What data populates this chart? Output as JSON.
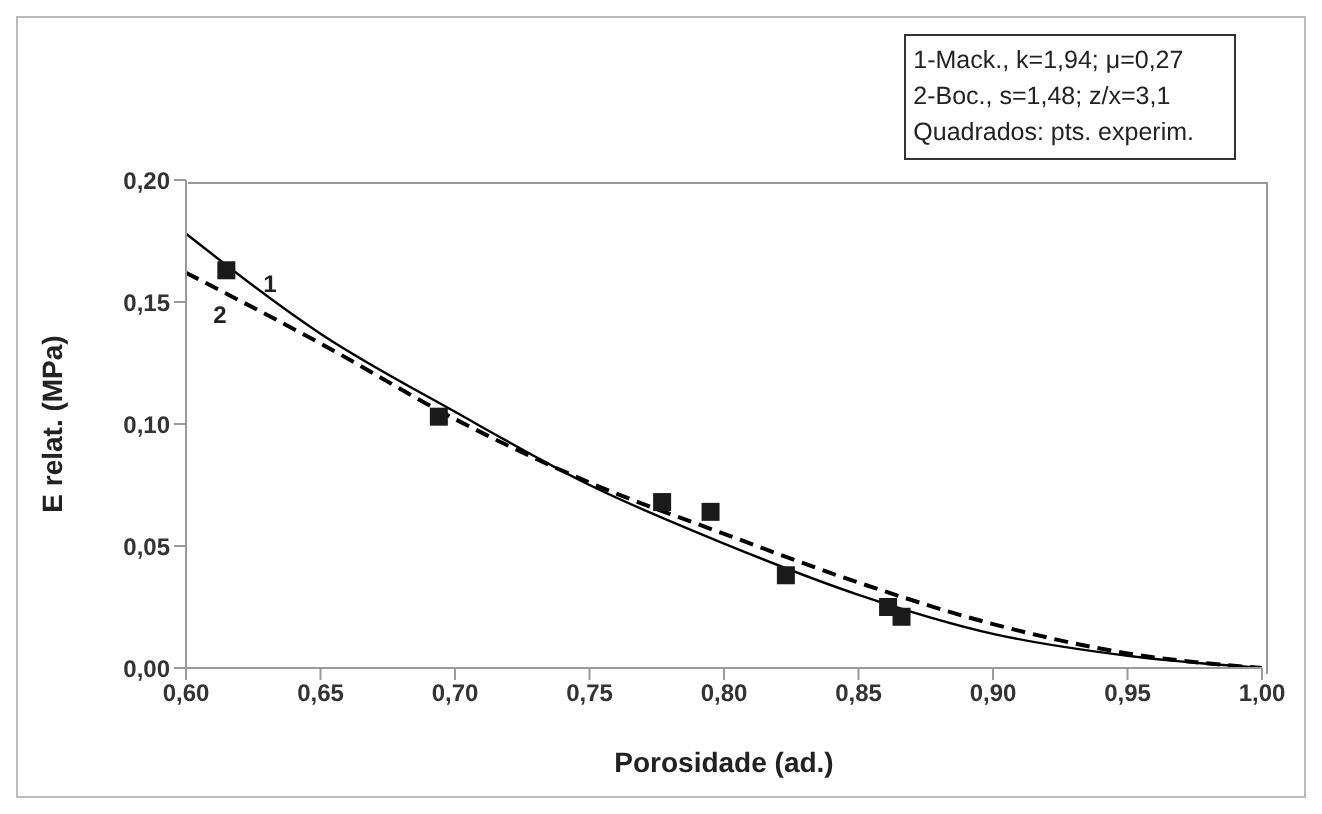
{
  "chart_data": {
    "type": "line",
    "xlabel": "Porosidade (ad.)",
    "ylabel": "E relat. (MPa)",
    "xlim": [
      0.6,
      1.0
    ],
    "ylim": [
      0,
      0.2
    ],
    "xticks": [
      {
        "value": 0.6,
        "label": "0,60"
      },
      {
        "value": 0.65,
        "label": "0,65"
      },
      {
        "value": 0.7,
        "label": "0,70"
      },
      {
        "value": 0.75,
        "label": "0,75"
      },
      {
        "value": 0.8,
        "label": "0,80"
      },
      {
        "value": 0.85,
        "label": "0,85"
      },
      {
        "value": 0.9,
        "label": "0,90"
      },
      {
        "value": 0.95,
        "label": "0,95"
      },
      {
        "value": 1.0,
        "label": "1,00"
      }
    ],
    "yticks": [
      {
        "value": 0,
        "label": "0,00"
      },
      {
        "value": 0.05,
        "label": "0,05"
      },
      {
        "value": 0.1,
        "label": "0,10"
      },
      {
        "value": 0.15,
        "label": "0,15"
      },
      {
        "value": 0.2,
        "label": "0,20"
      }
    ],
    "grid": false,
    "series": [
      {
        "name": "1",
        "color": "#000000",
        "line_style": "solid",
        "marker": "none",
        "x": [
          0.6,
          0.65,
          0.7,
          0.75,
          0.8,
          0.85,
          0.9,
          0.95,
          1.0
        ],
        "values": [
          0.178,
          0.137,
          0.105,
          0.075,
          0.051,
          0.03,
          0.014,
          0.005,
          0.0
        ]
      },
      {
        "name": "2",
        "color": "#000000",
        "line_style": "dashed",
        "marker": "none",
        "x": [
          0.6,
          0.65,
          0.7,
          0.75,
          0.8,
          0.85,
          0.9,
          0.95,
          1.0
        ],
        "values": [
          0.162,
          0.133,
          0.102,
          0.076,
          0.055,
          0.035,
          0.018,
          0.006,
          0.0
        ]
      },
      {
        "type": "scatter",
        "color": "#1a1a1a",
        "marker": "square",
        "x": [
          0.615,
          0.694,
          0.777,
          0.795,
          0.823,
          0.861,
          0.866
        ],
        "values": [
          0.163,
          0.103,
          0.068,
          0.064,
          0.038,
          0.025,
          0.021
        ]
      }
    ],
    "annotations": [
      "1-Mack., k=1,94; μ=0,27",
      "2-Boc., s=1,48; z/x=3,1",
      "Quadrados: pts. experim."
    ]
  }
}
